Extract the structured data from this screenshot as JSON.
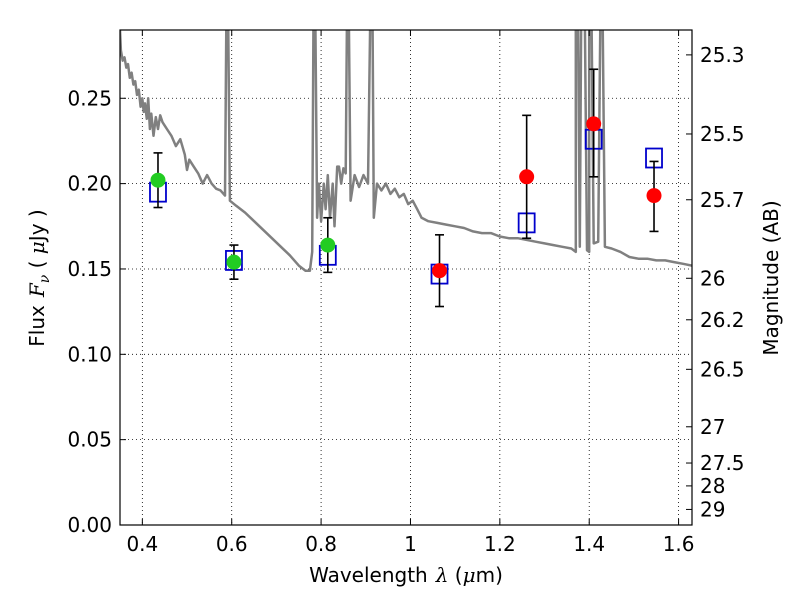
{
  "chart_data": {
    "type": "scatter",
    "title": "",
    "xlabel": {
      "prefix": "Wavelength",
      "symbol": "λ",
      "unit_open": " (",
      "unit_mu": "μ",
      "unit_rest": "m)"
    },
    "ylabel": {
      "prefix": "Flux",
      "symbol_main": "F",
      "symbol_sub": "ν",
      "unit_open": " ( ",
      "unit_mu": "μ",
      "unit_rest": "Jy )"
    },
    "ylabel_right": "Magnitude (AB)",
    "xlim": [
      0.35,
      1.63
    ],
    "ylim": [
      0.0,
      0.29
    ],
    "grid": true,
    "grid_style": "dotted",
    "x_ticks": [
      {
        "value": 0.4,
        "label": "0.4"
      },
      {
        "value": 0.6,
        "label": "0.6"
      },
      {
        "value": 0.8,
        "label": "0.8"
      },
      {
        "value": 1.0,
        "label": "1"
      },
      {
        "value": 1.2,
        "label": "1.2"
      },
      {
        "value": 1.4,
        "label": "1.4"
      },
      {
        "value": 1.6,
        "label": "1.6"
      }
    ],
    "y_ticks": [
      {
        "value": 0.0,
        "label": "0.00"
      },
      {
        "value": 0.05,
        "label": "0.05"
      },
      {
        "value": 0.1,
        "label": "0.10"
      },
      {
        "value": 0.15,
        "label": "0.15"
      },
      {
        "value": 0.2,
        "label": "0.20"
      },
      {
        "value": 0.25,
        "label": "0.25"
      }
    ],
    "right_ticks": [
      {
        "value": 25.3,
        "label": "25.3"
      },
      {
        "value": 25.5,
        "label": "25.5"
      },
      {
        "value": 25.7,
        "label": "25.7"
      },
      {
        "value": 26.0,
        "label": "26"
      },
      {
        "value": 26.2,
        "label": "26.2"
      },
      {
        "value": 26.5,
        "label": "26.5"
      },
      {
        "value": 27.0,
        "label": "27"
      },
      {
        "value": 27.5,
        "label": "27.5"
      },
      {
        "value": 28.0,
        "label": "28"
      },
      {
        "value": 29.0,
        "label": "29"
      }
    ],
    "colors": {
      "model_line": "#808080",
      "optical_points": "#22cc22",
      "nir_points": "#ff0000",
      "model_boxes": "#0000cc",
      "errorbars": "#000000"
    },
    "series": [
      {
        "kind": "line",
        "points": [
          [
            0.35,
            0.29
          ],
          [
            0.352,
            0.278
          ],
          [
            0.356,
            0.272
          ],
          [
            0.36,
            0.274
          ],
          [
            0.364,
            0.268
          ],
          [
            0.368,
            0.27
          ],
          [
            0.372,
            0.262
          ],
          [
            0.376,
            0.265
          ],
          [
            0.38,
            0.258
          ],
          [
            0.384,
            0.26
          ],
          [
            0.388,
            0.252
          ],
          [
            0.392,
            0.255
          ],
          [
            0.396,
            0.245
          ],
          [
            0.4,
            0.25
          ],
          [
            0.403,
            0.242
          ],
          [
            0.406,
            0.247
          ],
          [
            0.41,
            0.238
          ],
          [
            0.413,
            0.25
          ],
          [
            0.417,
            0.232
          ],
          [
            0.42,
            0.241
          ],
          [
            0.425,
            0.228
          ],
          [
            0.43,
            0.239
          ],
          [
            0.435,
            0.232
          ],
          [
            0.44,
            0.24
          ],
          [
            0.445,
            0.236
          ],
          [
            0.455,
            0.232
          ],
          [
            0.465,
            0.228
          ],
          [
            0.475,
            0.222
          ],
          [
            0.485,
            0.226
          ],
          [
            0.495,
            0.217
          ],
          [
            0.5,
            0.208
          ],
          [
            0.505,
            0.214
          ],
          [
            0.515,
            0.21
          ],
          [
            0.525,
            0.206
          ],
          [
            0.535,
            0.2
          ],
          [
            0.545,
            0.205
          ],
          [
            0.555,
            0.2
          ],
          [
            0.565,
            0.197
          ],
          [
            0.575,
            0.196
          ],
          [
            0.585,
            0.193
          ],
          [
            0.588,
            0.3
          ],
          [
            0.592,
            0.3
          ],
          [
            0.596,
            0.19
          ],
          [
            0.61,
            0.187
          ],
          [
            0.63,
            0.183
          ],
          [
            0.65,
            0.178
          ],
          [
            0.67,
            0.173
          ],
          [
            0.69,
            0.168
          ],
          [
            0.71,
            0.163
          ],
          [
            0.73,
            0.158
          ],
          [
            0.75,
            0.152
          ],
          [
            0.765,
            0.149
          ],
          [
            0.775,
            0.149
          ],
          [
            0.78,
            0.16
          ],
          [
            0.783,
            0.3
          ],
          [
            0.787,
            0.3
          ],
          [
            0.791,
            0.18
          ],
          [
            0.795,
            0.2
          ],
          [
            0.8,
            0.178
          ],
          [
            0.806,
            0.2
          ],
          [
            0.81,
            0.185
          ],
          [
            0.815,
            0.205
          ],
          [
            0.82,
            0.18
          ],
          [
            0.826,
            0.2
          ],
          [
            0.83,
            0.175
          ],
          [
            0.836,
            0.21
          ],
          [
            0.84,
            0.21
          ],
          [
            0.845,
            0.2
          ],
          [
            0.85,
            0.209
          ],
          [
            0.855,
            0.206
          ],
          [
            0.858,
            0.3
          ],
          [
            0.862,
            0.3
          ],
          [
            0.866,
            0.19
          ],
          [
            0.875,
            0.205
          ],
          [
            0.885,
            0.198
          ],
          [
            0.895,
            0.205
          ],
          [
            0.905,
            0.2
          ],
          [
            0.91,
            0.3
          ],
          [
            0.915,
            0.3
          ],
          [
            0.918,
            0.18
          ],
          [
            0.925,
            0.2
          ],
          [
            0.935,
            0.196
          ],
          [
            0.945,
            0.2
          ],
          [
            0.955,
            0.194
          ],
          [
            0.965,
            0.197
          ],
          [
            0.975,
            0.192
          ],
          [
            0.985,
            0.194
          ],
          [
            0.995,
            0.188
          ],
          [
            1.005,
            0.19
          ],
          [
            1.015,
            0.185
          ],
          [
            1.025,
            0.18
          ],
          [
            1.04,
            0.178
          ],
          [
            1.06,
            0.177
          ],
          [
            1.08,
            0.176
          ],
          [
            1.1,
            0.175
          ],
          [
            1.12,
            0.174
          ],
          [
            1.14,
            0.172
          ],
          [
            1.16,
            0.171
          ],
          [
            1.18,
            0.171
          ],
          [
            1.2,
            0.169
          ],
          [
            1.22,
            0.168
          ],
          [
            1.24,
            0.168
          ],
          [
            1.26,
            0.167
          ],
          [
            1.28,
            0.166
          ],
          [
            1.3,
            0.165
          ],
          [
            1.32,
            0.164
          ],
          [
            1.34,
            0.163
          ],
          [
            1.36,
            0.162
          ],
          [
            1.37,
            0.16
          ],
          [
            1.37,
            0.3
          ],
          [
            1.375,
            0.3
          ],
          [
            1.379,
            0.163
          ],
          [
            1.382,
            0.3
          ],
          [
            1.385,
            0.3
          ],
          [
            1.39,
            0.3
          ],
          [
            1.395,
            0.161
          ],
          [
            1.4,
            0.16
          ],
          [
            1.4,
            0.3
          ],
          [
            1.405,
            0.3
          ],
          [
            1.41,
            0.165
          ],
          [
            1.42,
            0.166
          ],
          [
            1.425,
            0.3
          ],
          [
            1.43,
            0.3
          ],
          [
            1.435,
            0.163
          ],
          [
            1.45,
            0.162
          ],
          [
            1.47,
            0.16
          ],
          [
            1.49,
            0.157
          ],
          [
            1.51,
            0.156
          ],
          [
            1.53,
            0.156
          ],
          [
            1.55,
            0.155
          ],
          [
            1.57,
            0.155
          ],
          [
            1.59,
            0.154
          ],
          [
            1.61,
            0.153
          ],
          [
            1.63,
            0.152
          ]
        ]
      },
      {
        "kind": "points",
        "points": [
          {
            "x": 0.435,
            "y": 0.202,
            "yerr": [
              0.186,
              0.218
            ]
          },
          {
            "x": 0.605,
            "y": 0.154,
            "yerr": [
              0.144,
              0.164
            ]
          },
          {
            "x": 0.815,
            "y": 0.164,
            "yerr": [
              0.148,
              0.18
            ]
          }
        ]
      },
      {
        "kind": "points",
        "points": [
          {
            "x": 1.065,
            "y": 0.149,
            "yerr": [
              0.128,
              0.17
            ]
          },
          {
            "x": 1.26,
            "y": 0.204,
            "yerr": [
              0.168,
              0.24
            ]
          },
          {
            "x": 1.41,
            "y": 0.235,
            "yerr": [
              0.204,
              0.267
            ]
          },
          {
            "x": 1.545,
            "y": 0.193,
            "yerr": [
              0.172,
              0.213
            ]
          }
        ]
      },
      {
        "kind": "boxes",
        "points": [
          {
            "x": 0.435,
            "y": 0.195
          },
          {
            "x": 0.605,
            "y": 0.155
          },
          {
            "x": 0.815,
            "y": 0.158
          },
          {
            "x": 1.065,
            "y": 0.147
          },
          {
            "x": 1.26,
            "y": 0.177
          },
          {
            "x": 1.41,
            "y": 0.226
          },
          {
            "x": 1.545,
            "y": 0.215
          }
        ]
      }
    ]
  }
}
